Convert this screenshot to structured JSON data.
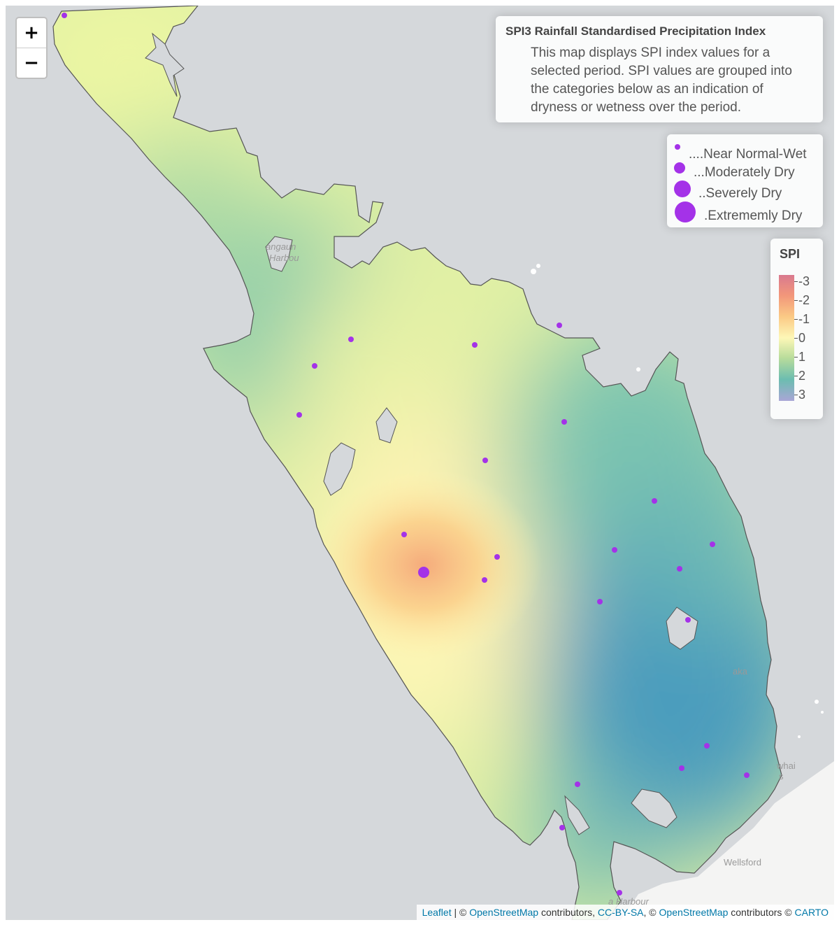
{
  "zoom": {
    "in_label": "+",
    "out_label": "−"
  },
  "info": {
    "title": "SPI3 Rainfall Standardised Precipitation Index",
    "description": "This map displays SPI index values for a selected period. SPI values are grouped into the categories below as an indication of dryness or wetness over the period."
  },
  "size_legend": [
    {
      "label": "....Near Normal-Wet",
      "category": "near-normal-wet"
    },
    {
      "label": "...Moderately Dry",
      "category": "moderately-dry"
    },
    {
      "label": "..Severely Dry",
      "category": "severely-dry"
    },
    {
      "label": ".Extrememly Dry",
      "category": "extremely-dry"
    }
  ],
  "spi_legend": {
    "title": "SPI",
    "ticks": [
      "-3",
      "-2",
      "-1",
      "0",
      "1",
      "2",
      "3"
    ],
    "colors": [
      "#d9798f",
      "#f2967a",
      "#fbc985",
      "#fdf7b7",
      "#b8dc9b",
      "#6cbdb0",
      "#a9a6d6"
    ]
  },
  "places": {
    "harbour": "Rangaunu Harbour",
    "harbour_l1": "angaun",
    "harbour_l2": "Harbou",
    "kaka": "aka",
    "whai_l1": "whai",
    "whai_l2": "s",
    "wellsford": "Wellsford",
    "kaipara": "a Harbour"
  },
  "attribution": {
    "leaflet": "Leaflet",
    "sep1": " | © ",
    "osm1": "OpenStreetMap",
    "contrib1": " contributors, ",
    "ccbysa": "CC-BY-SA",
    "sep2": ", © ",
    "osm2": "OpenStreetMap",
    "contrib2": " contributors © ",
    "carto": "CARTO"
  },
  "marker_color": "#a432e8"
}
